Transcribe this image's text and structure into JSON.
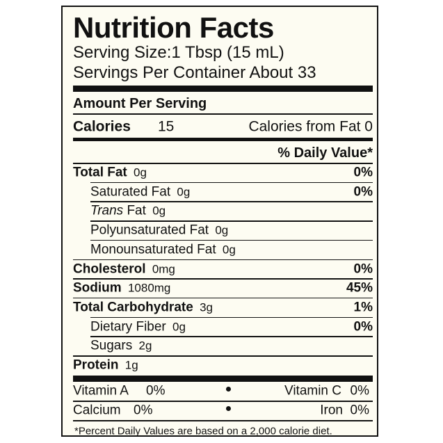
{
  "title": "Nutrition Facts",
  "serving_size": "Serving Size:1 Tbsp (15 mL)",
  "servings_per_container": "Servings Per Container About 33",
  "amount_per_serving": "Amount Per Serving",
  "calories": {
    "label": "Calories",
    "value": "15",
    "from_fat": "Calories from Fat 0"
  },
  "daily_value_header": "% Daily Value*",
  "nutrients": [
    {
      "name": "Total Fat",
      "amount": "0g",
      "dv": "0%",
      "sub": [
        {
          "name": "Saturated Fat",
          "amount": "0g",
          "dv": "0%"
        },
        {
          "name_italic": "Trans",
          "name": "Fat",
          "amount": "0g"
        },
        {
          "name": "Polyunsaturated Fat",
          "amount": "0g"
        },
        {
          "name": "Monounsaturated Fat",
          "amount": "0g"
        }
      ]
    },
    {
      "name": "Cholesterol",
      "amount": "0mg",
      "dv": "0%"
    },
    {
      "name": "Sodium",
      "amount": "1080mg",
      "dv": "45%"
    },
    {
      "name": "Total Carbohydrate",
      "amount": "3g",
      "dv": "1%",
      "sub": [
        {
          "name": "Dietary Fiber",
          "amount": "0g",
          "dv": "0%"
        },
        {
          "name": "Sugars",
          "amount": "2g"
        }
      ]
    },
    {
      "name": "Protein",
      "amount": "1g"
    }
  ],
  "vitamins": [
    {
      "name": "Vitamin A",
      "amount": "0%"
    },
    {
      "name": "Vitamin C",
      "amount": "0%"
    },
    {
      "name": "Calcium",
      "amount": "0%"
    },
    {
      "name": "Iron",
      "amount": "0%"
    }
  ],
  "footnote": "*Percent Daily Values are based on a 2,000 calorie diet."
}
